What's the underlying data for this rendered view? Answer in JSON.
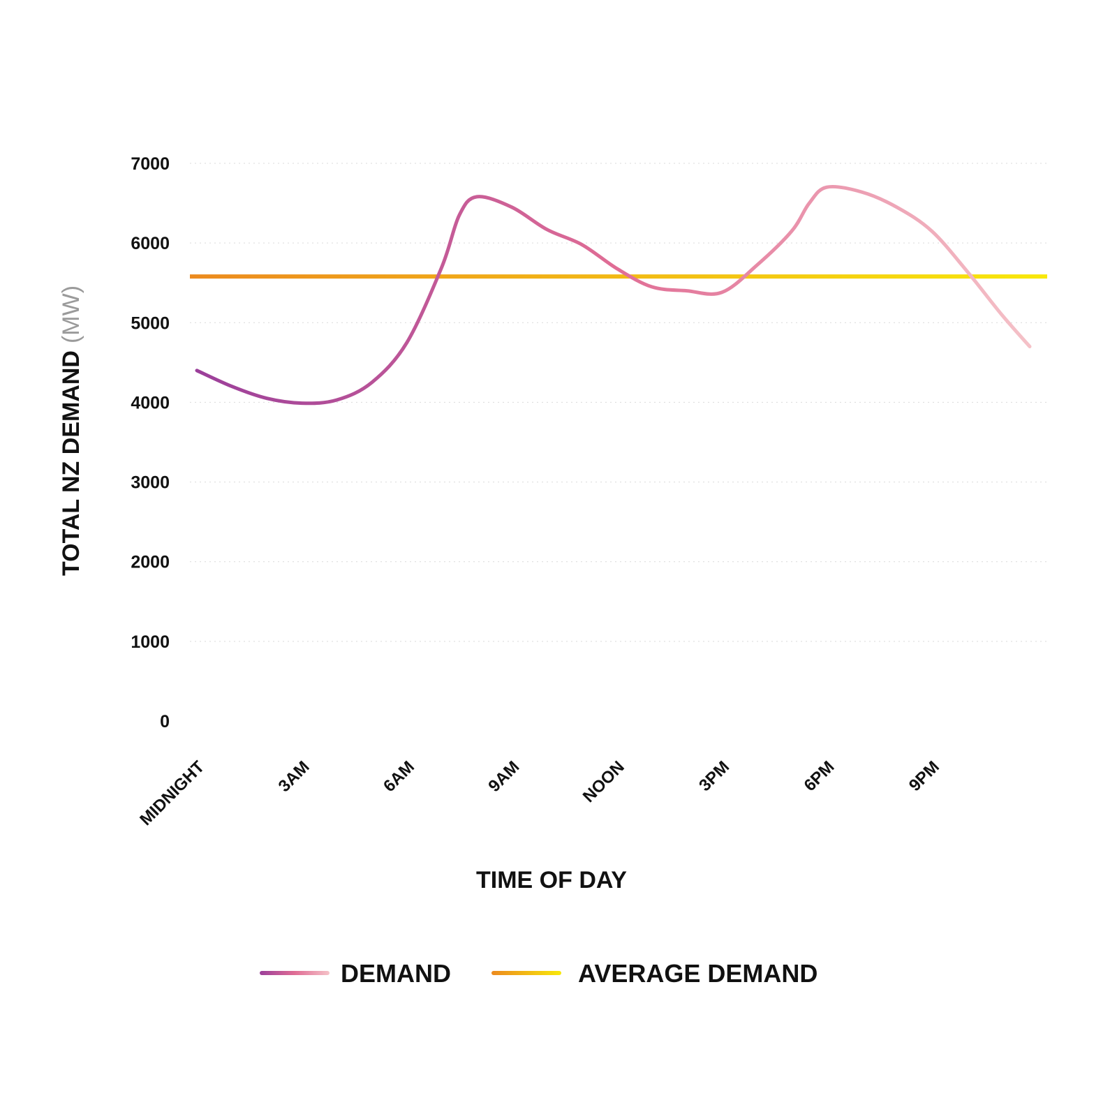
{
  "chart_data": {
    "type": "line",
    "xlabel": "TIME OF DAY",
    "ylabel": "TOTAL NZ DEMAND",
    "ylabel_unit": "(MW)",
    "ylim": [
      0,
      7000
    ],
    "yticks": [
      0,
      1000,
      2000,
      3000,
      4000,
      5000,
      6000,
      7000
    ],
    "xticks": [
      {
        "label": "MIDNIGHT",
        "hour": 0
      },
      {
        "label": "3AM",
        "hour": 3
      },
      {
        "label": "6AM",
        "hour": 6
      },
      {
        "label": "9AM",
        "hour": 9
      },
      {
        "label": "NOON",
        "hour": 12
      },
      {
        "label": "3PM",
        "hour": 15
      },
      {
        "label": "6PM",
        "hour": 18
      },
      {
        "label": "9PM",
        "hour": 21
      }
    ],
    "xlim": [
      0,
      24
    ],
    "grid": true,
    "legend_position": "bottom",
    "series": [
      {
        "name": "DEMAND",
        "colors": [
          "#9b3f9a",
          "#e06d95",
          "#f5c2c8"
        ],
        "x": [
          0,
          1,
          2,
          3,
          4,
          5,
          6,
          7,
          7.5,
          8,
          9,
          10,
          11,
          12,
          13,
          14,
          15,
          16,
          17,
          17.5,
          18,
          19,
          20,
          21,
          22,
          23,
          23.8
        ],
        "values": [
          4400,
          4200,
          4050,
          3990,
          4030,
          4250,
          4750,
          5700,
          6350,
          6580,
          6450,
          6170,
          5980,
          5680,
          5450,
          5400,
          5380,
          5720,
          6150,
          6500,
          6700,
          6640,
          6450,
          6150,
          5650,
          5100,
          4700
        ]
      },
      {
        "name": "AVERAGE DEMAND",
        "colors": [
          "#ec8a1f",
          "#f8e80a"
        ],
        "x": [
          0,
          24
        ],
        "values": [
          5580,
          5580
        ]
      }
    ]
  }
}
